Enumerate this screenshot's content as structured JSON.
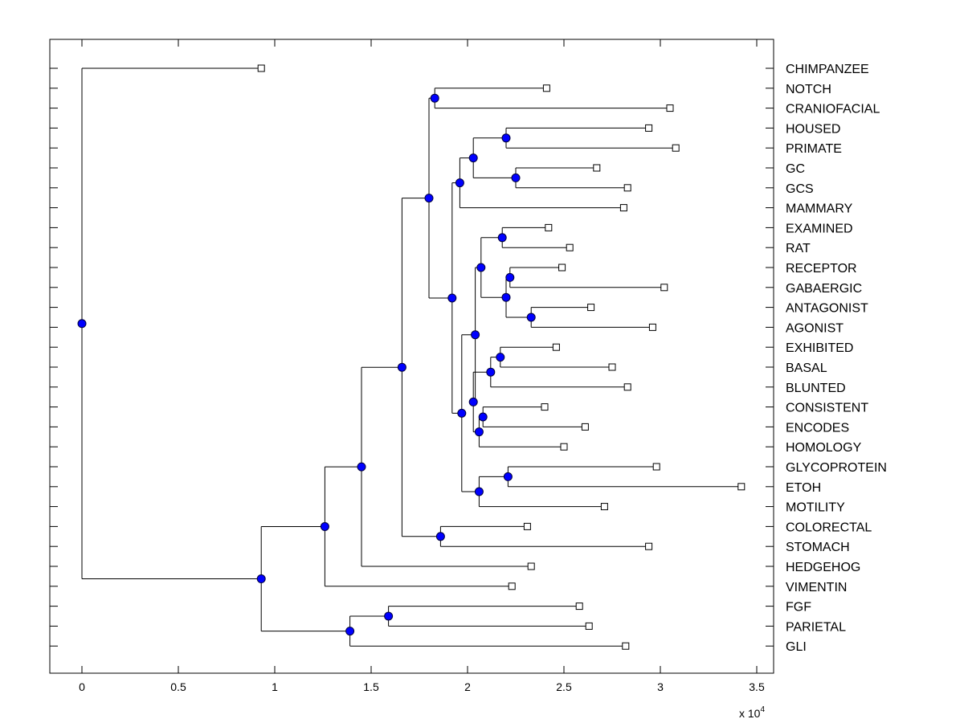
{
  "chart_data": {
    "type": "dendrogram",
    "title": "",
    "xlabel": "",
    "ylabel": "",
    "x_multiplier_label": "x 10",
    "x_multiplier_exponent": "4",
    "xlim": [
      -0.16,
      3.6
    ],
    "xticks": [
      0,
      0.5,
      1,
      1.5,
      2,
      2.5,
      3,
      3.5
    ],
    "xtick_labels": [
      "0",
      "0.5",
      "1",
      "1.5",
      "2",
      "2.5",
      "3",
      "3.5"
    ],
    "leaves": [
      {
        "name": "CHIMPANZEE",
        "x": 0.93
      },
      {
        "name": "NOTCH",
        "x": 2.41
      },
      {
        "name": "CRANIOFACIAL",
        "x": 3.05
      },
      {
        "name": "HOUSED",
        "x": 2.94
      },
      {
        "name": "PRIMATE",
        "x": 3.08
      },
      {
        "name": "GC",
        "x": 2.67
      },
      {
        "name": "GCS",
        "x": 2.83
      },
      {
        "name": "MAMMARY",
        "x": 2.81
      },
      {
        "name": "EXAMINED",
        "x": 2.42
      },
      {
        "name": "RAT",
        "x": 2.53
      },
      {
        "name": "RECEPTOR",
        "x": 2.49
      },
      {
        "name": "GABAERGIC",
        "x": 3.02
      },
      {
        "name": "ANTAGONIST",
        "x": 2.64
      },
      {
        "name": "AGONIST",
        "x": 2.96
      },
      {
        "name": "EXHIBITED",
        "x": 2.46
      },
      {
        "name": "BASAL",
        "x": 2.75
      },
      {
        "name": "BLUNTED",
        "x": 2.83
      },
      {
        "name": "CONSISTENT",
        "x": 2.4
      },
      {
        "name": "ENCODES",
        "x": 2.61
      },
      {
        "name": "HOMOLOGY",
        "x": 2.5
      },
      {
        "name": "GLYCOPROTEIN",
        "x": 2.98
      },
      {
        "name": "ETOH",
        "x": 3.42
      },
      {
        "name": "MOTILITY",
        "x": 2.71
      },
      {
        "name": "COLORECTAL",
        "x": 2.31
      },
      {
        "name": "STOMACH",
        "x": 2.94
      },
      {
        "name": "HEDGEHOG",
        "x": 2.33
      },
      {
        "name": "VIMENTIN",
        "x": 2.23
      },
      {
        "name": "FGF",
        "x": 2.58
      },
      {
        "name": "PARIETAL",
        "x": 2.63
      },
      {
        "name": "GLI",
        "x": 2.82
      }
    ],
    "tree": {
      "x": 0,
      "c": [
        {
          "l": 0
        },
        {
          "x": 0.93,
          "c": [
            {
              "x": 1.26,
              "c": [
                {
                  "x": 1.45,
                  "c": [
                    {
                      "x": 1.66,
                      "c": [
                        {
                          "x": 1.8,
                          "c": [
                            {
                              "x": 1.83,
                              "c": [
                                {
                                  "l": 1
                                },
                                {
                                  "l": 2
                                }
                              ]
                            },
                            {
                              "x": 1.92,
                              "c": [
                                {
                                  "x": 1.96,
                                  "c": [
                                    {
                                      "x": 2.03,
                                      "c": [
                                        {
                                          "x": 2.2,
                                          "c": [
                                            {
                                              "l": 3
                                            },
                                            {
                                              "l": 4
                                            }
                                          ]
                                        },
                                        {
                                          "x": 2.25,
                                          "c": [
                                            {
                                              "l": 5
                                            },
                                            {
                                              "l": 6
                                            }
                                          ]
                                        }
                                      ]
                                    },
                                    {
                                      "l": 7
                                    }
                                  ]
                                },
                                {
                                  "x": 1.97,
                                  "c": [
                                    {
                                      "x": 2.04,
                                      "c": [
                                        {
                                          "x": 2.07,
                                          "c": [
                                            {
                                              "x": 2.18,
                                              "c": [
                                                {
                                                  "l": 8
                                                },
                                                {
                                                  "l": 9
                                                }
                                              ]
                                            },
                                            {
                                              "x": 2.2,
                                              "c": [
                                                {
                                                  "x": 2.22,
                                                  "c": [
                                                    {
                                                      "l": 10
                                                    },
                                                    {
                                                      "l": 11
                                                    }
                                                  ]
                                                },
                                                {
                                                  "x": 2.33,
                                                  "c": [
                                                    {
                                                      "l": 12
                                                    },
                                                    {
                                                      "l": 13
                                                    }
                                                  ]
                                                }
                                              ]
                                            }
                                          ]
                                        },
                                        {
                                          "x": 2.03,
                                          "c": [
                                            {
                                              "x": 2.12,
                                              "c": [
                                                {
                                                  "x": 2.17,
                                                  "c": [
                                                    {
                                                      "l": 14
                                                    },
                                                    {
                                                      "l": 15
                                                    }
                                                  ]
                                                },
                                                {
                                                  "l": 16
                                                }
                                              ]
                                            },
                                            {
                                              "x": 2.06,
                                              "c": [
                                                {
                                                  "x": 2.08,
                                                  "c": [
                                                    {
                                                      "l": 17
                                                    },
                                                    {
                                                      "l": 18
                                                    }
                                                  ]
                                                },
                                                {
                                                  "l": 19
                                                }
                                              ]
                                            }
                                          ]
                                        }
                                      ]
                                    },
                                    {
                                      "x": 2.06,
                                      "c": [
                                        {
                                          "x": 2.21,
                                          "c": [
                                            {
                                              "l": 20
                                            },
                                            {
                                              "l": 21
                                            }
                                          ]
                                        },
                                        {
                                          "l": 22
                                        }
                                      ]
                                    }
                                  ]
                                }
                              ]
                            }
                          ]
                        },
                        {
                          "x": 1.86,
                          "c": [
                            {
                              "l": 23
                            },
                            {
                              "l": 24
                            }
                          ]
                        }
                      ]
                    },
                    {
                      "l": 25
                    }
                  ]
                },
                {
                  "l": 26
                }
              ]
            },
            {
              "x": 1.39,
              "c": [
                {
                  "x": 1.59,
                  "c": [
                    {
                      "l": 27
                    },
                    {
                      "l": 28
                    }
                  ]
                },
                {
                  "l": 29
                }
              ]
            }
          ]
        }
      ]
    },
    "colors": {
      "node_fill": "#0000ff",
      "node_stroke": "#00003c",
      "leaf_fill": "#ffffff",
      "line": "#000000"
    }
  }
}
